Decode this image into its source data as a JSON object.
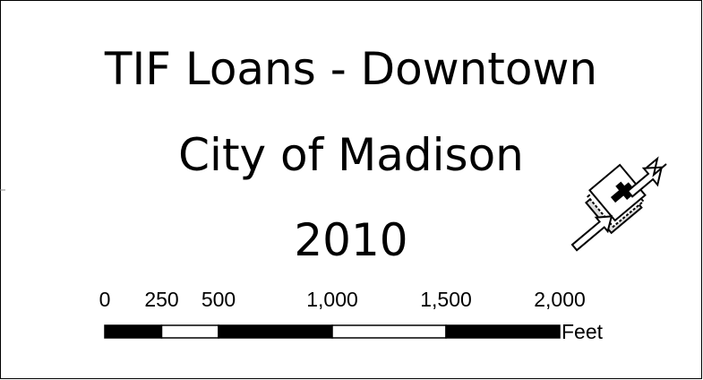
{
  "title_lines": [
    "TIF Loans - Downtown",
    "City of Madison",
    "2010"
  ],
  "scale_bar": {
    "ticks": [
      {
        "value": 0,
        "label": "0"
      },
      {
        "value": 250,
        "label": "250"
      },
      {
        "value": 500,
        "label": "500"
      },
      {
        "value": 1000,
        "label": "1,000"
      },
      {
        "value": 1500,
        "label": "1,500"
      },
      {
        "value": 2000,
        "label": "2,000"
      }
    ],
    "unit": "Feet"
  }
}
